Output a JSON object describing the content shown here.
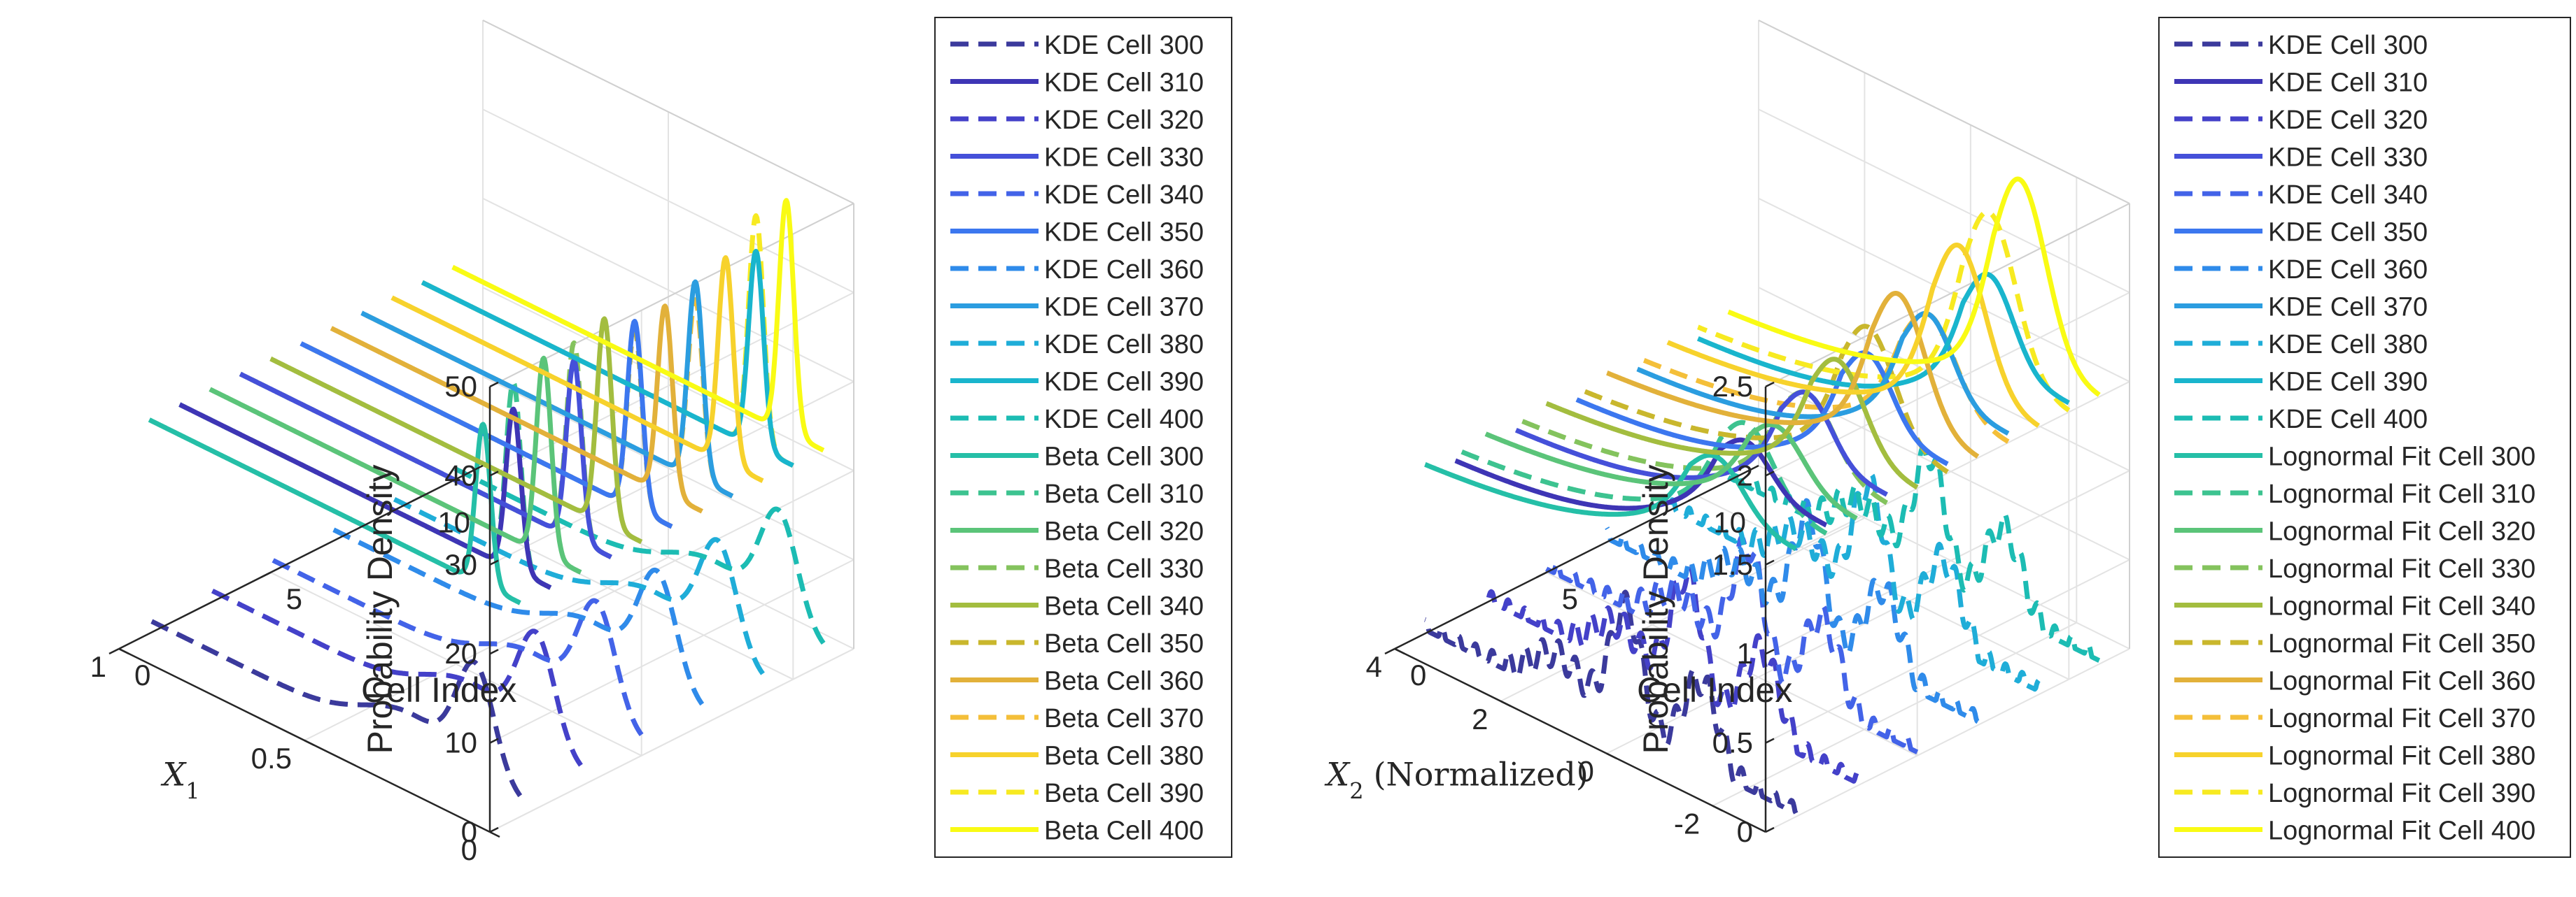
{
  "chart_data": [
    {
      "type": "line",
      "subtype": "3d-waterfall",
      "xlabel": "X",
      "xlabel_sub": "1",
      "ylabel": "Cell Index",
      "zlabel": "Probability Density",
      "x_range": [
        0,
        1
      ],
      "y_range": [
        0,
        12
      ],
      "z_range": [
        0,
        50
      ],
      "x_ticks": [
        "0",
        "0.5",
        "1"
      ],
      "y_ticks": [
        "0",
        "5",
        "10"
      ],
      "z_ticks": [
        "0",
        "10",
        "20",
        "30",
        "40",
        "50"
      ],
      "legend": {
        "position": "right",
        "entries": [
          {
            "label": "KDE Cell 300",
            "style": "dashed",
            "color": "#3b3a9c"
          },
          {
            "label": "KDE Cell 310",
            "style": "solid",
            "color": "#3e35b5"
          },
          {
            "label": "KDE Cell 320",
            "style": "dashed",
            "color": "#4441c9"
          },
          {
            "label": "KDE Cell 330",
            "style": "solid",
            "color": "#4550d9"
          },
          {
            "label": "KDE Cell 340",
            "style": "dashed",
            "color": "#4363e8"
          },
          {
            "label": "KDE Cell 350",
            "style": "solid",
            "color": "#3c77ef"
          },
          {
            "label": "KDE Cell 360",
            "style": "dashed",
            "color": "#2f8bea"
          },
          {
            "label": "KDE Cell 370",
            "style": "solid",
            "color": "#2b9de0"
          },
          {
            "label": "KDE Cell 380",
            "style": "dashed",
            "color": "#1fadd8"
          },
          {
            "label": "KDE Cell 390",
            "style": "solid",
            "color": "#19b5cd"
          },
          {
            "label": "KDE Cell 400",
            "style": "dashed",
            "color": "#1cbcb3"
          },
          {
            "label": "Beta Cell 300",
            "style": "solid",
            "color": "#25bfa7"
          },
          {
            "label": "Beta Cell 310",
            "style": "dashed",
            "color": "#3dc390"
          },
          {
            "label": "Beta Cell 320",
            "style": "solid",
            "color": "#5bc479"
          },
          {
            "label": "Beta Cell 330",
            "style": "dashed",
            "color": "#84c35d"
          },
          {
            "label": "Beta Cell 340",
            "style": "solid",
            "color": "#a3bd3f"
          },
          {
            "label": "Beta Cell 350",
            "style": "dashed",
            "color": "#c9b72d"
          },
          {
            "label": "Beta Cell 360",
            "style": "solid",
            "color": "#e2b13a"
          },
          {
            "label": "Beta Cell 370",
            "style": "dashed",
            "color": "#f4bf39"
          },
          {
            "label": "Beta Cell 380",
            "style": "solid",
            "color": "#f7d22c"
          },
          {
            "label": "Beta Cell 390",
            "style": "dashed",
            "color": "#f7ea21"
          },
          {
            "label": "Beta Cell 400",
            "style": "solid",
            "color": "#f9fb14"
          }
        ]
      },
      "series_summary": {
        "kde_dashed_peaks_x": 0.12,
        "beta_peak_x": 0.1,
        "beta_peak_density": [
          42,
          45,
          46,
          46,
          47,
          44,
          45,
          44,
          47,
          50,
          50
        ]
      }
    },
    {
      "type": "line",
      "subtype": "3d-waterfall",
      "xlabel": "X",
      "xlabel_sub": "2",
      "xlabel_suffix": "(Normalized)",
      "ylabel": "Cell Index",
      "zlabel": "Probability Density",
      "x_range": [
        -3,
        4
      ],
      "y_range": [
        0,
        12
      ],
      "z_range": [
        0,
        2.5
      ],
      "x_ticks": [
        "-2",
        "0",
        "2",
        "4"
      ],
      "y_ticks": [
        "0",
        "5",
        "10"
      ],
      "z_ticks": [
        "0",
        "0.5",
        "1",
        "1.5",
        "2",
        "2.5"
      ],
      "legend": {
        "position": "right",
        "entries": [
          {
            "label": "KDE Cell 300",
            "style": "dashed",
            "color": "#3b3a9c"
          },
          {
            "label": "KDE Cell 310",
            "style": "solid",
            "color": "#3e35b5"
          },
          {
            "label": "KDE Cell 320",
            "style": "dashed",
            "color": "#4441c9"
          },
          {
            "label": "KDE Cell 330",
            "style": "solid",
            "color": "#4550d9"
          },
          {
            "label": "KDE Cell 340",
            "style": "dashed",
            "color": "#4363e8"
          },
          {
            "label": "KDE Cell 350",
            "style": "solid",
            "color": "#3c77ef"
          },
          {
            "label": "KDE Cell 360",
            "style": "dashed",
            "color": "#2f8bea"
          },
          {
            "label": "KDE Cell 370",
            "style": "solid",
            "color": "#2b9de0"
          },
          {
            "label": "KDE Cell 380",
            "style": "dashed",
            "color": "#1fadd8"
          },
          {
            "label": "KDE Cell 390",
            "style": "solid",
            "color": "#19b5cd"
          },
          {
            "label": "KDE Cell 400",
            "style": "dashed",
            "color": "#1cbcb3"
          },
          {
            "label": "Lognormal Fit Cell 300",
            "style": "solid",
            "color": "#25bfa7"
          },
          {
            "label": "Lognormal Fit Cell 310",
            "style": "dashed",
            "color": "#3dc390"
          },
          {
            "label": "Lognormal Fit Cell 320",
            "style": "solid",
            "color": "#5bc479"
          },
          {
            "label": "Lognormal Fit Cell 330",
            "style": "dashed",
            "color": "#84c35d"
          },
          {
            "label": "Lognormal Fit Cell 340",
            "style": "solid",
            "color": "#a3bd3f"
          },
          {
            "label": "Lognormal Fit Cell 350",
            "style": "dashed",
            "color": "#c9b72d"
          },
          {
            "label": "Lognormal Fit Cell 360",
            "style": "solid",
            "color": "#e2b13a"
          },
          {
            "label": "Lognormal Fit Cell 370",
            "style": "dashed",
            "color": "#f4bf39"
          },
          {
            "label": "Lognormal Fit Cell 380",
            "style": "solid",
            "color": "#f7d22c"
          },
          {
            "label": "Lognormal Fit Cell 390",
            "style": "dashed",
            "color": "#f7ea21"
          },
          {
            "label": "Lognormal Fit Cell 400",
            "style": "solid",
            "color": "#f9fb14"
          }
        ]
      },
      "series_summary": {
        "lognormal_peak_x": -1.5,
        "lognormal_peak_density": [
          1.8,
          1.9,
          1.8,
          1.9,
          2.0,
          2.1,
          2.2,
          2.0,
          2.3,
          2.4,
          2.5
        ]
      }
    }
  ]
}
